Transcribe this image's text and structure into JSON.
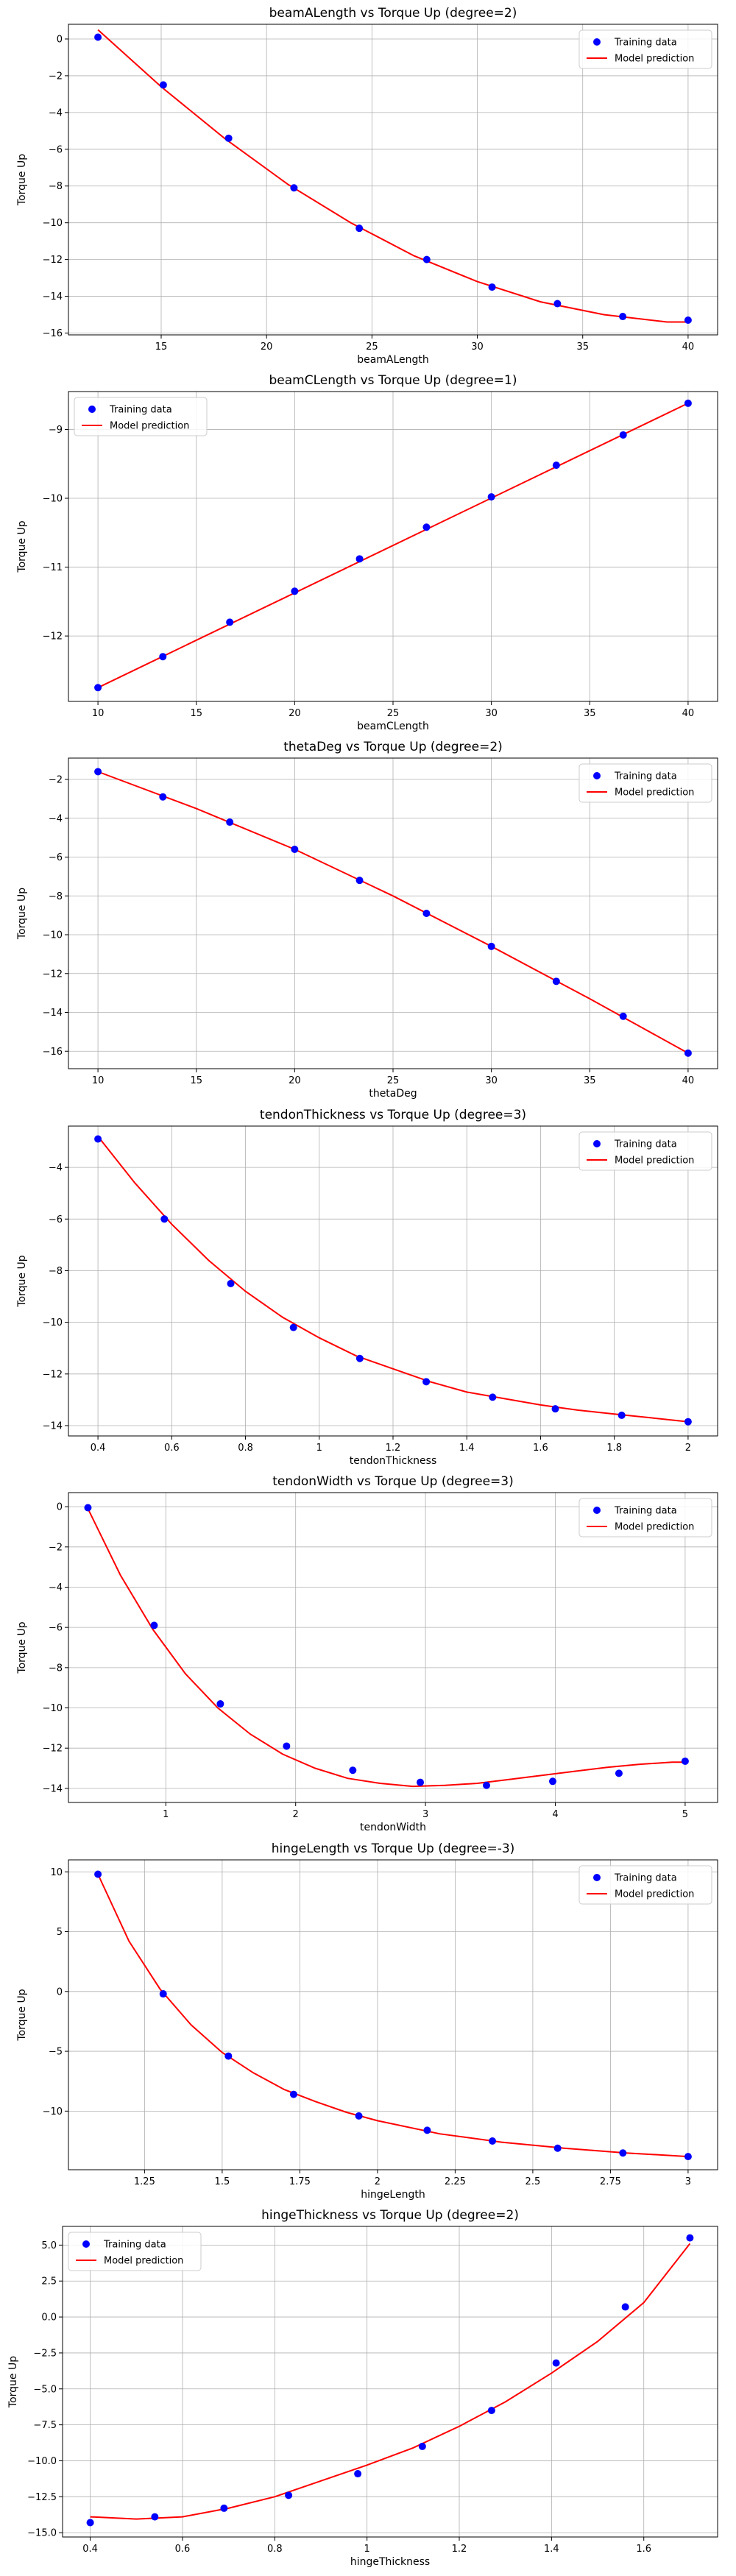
{
  "chart_data": [
    {
      "type": "scatter",
      "title": "beamALength vs Torque Up (degree=2)",
      "xlabel": "beamALength",
      "ylabel": "Torque Up",
      "xlim": [
        10.6,
        41.4
      ],
      "ylim": [
        -16.1,
        0.8
      ],
      "xticks": [
        15,
        20,
        25,
        30,
        35,
        40
      ],
      "yticks": [
        0,
        -2,
        -4,
        -6,
        -8,
        -10,
        -12,
        -14,
        -16
      ],
      "grid": true,
      "legend_position": "top-right",
      "series": [
        {
          "name": "Training data",
          "kind": "points",
          "x": [
            12.0,
            15.1,
            18.2,
            21.3,
            24.4,
            27.6,
            30.7,
            33.8,
            36.9,
            40.0
          ],
          "y": [
            0.1,
            -2.5,
            -5.4,
            -8.1,
            -10.3,
            -12.0,
            -13.5,
            -14.4,
            -15.1,
            -15.3
          ]
        },
        {
          "name": "Model prediction",
          "kind": "curve",
          "x": [
            12,
            15,
            18,
            21,
            24,
            27,
            30,
            33,
            36,
            39,
            40
          ],
          "y": [
            0.5,
            -2.6,
            -5.4,
            -7.9,
            -10.0,
            -11.8,
            -13.2,
            -14.3,
            -15.0,
            -15.4,
            -15.4
          ]
        }
      ]
    },
    {
      "type": "scatter",
      "title": "beamCLength vs Torque Up (degree=1)",
      "xlabel": "beamCLength",
      "ylabel": "Torque Up",
      "xlim": [
        8.5,
        41.5
      ],
      "ylim": [
        -12.95,
        -8.45
      ],
      "xticks": [
        10,
        15,
        20,
        25,
        30,
        35,
        40
      ],
      "yticks": [
        -9,
        -10,
        -11,
        -12
      ],
      "grid": true,
      "legend_position": "top-left",
      "series": [
        {
          "name": "Training data",
          "kind": "points",
          "x": [
            10.0,
            13.3,
            16.7,
            20.0,
            23.3,
            26.7,
            30.0,
            33.3,
            36.7,
            40.0
          ],
          "y": [
            -12.75,
            -12.3,
            -11.8,
            -11.35,
            -10.88,
            -10.42,
            -9.98,
            -9.52,
            -9.08,
            -8.62
          ]
        },
        {
          "name": "Model prediction",
          "kind": "curve",
          "x": [
            10,
            40
          ],
          "y": [
            -12.75,
            -8.62
          ]
        }
      ]
    },
    {
      "type": "scatter",
      "title": "thetaDeg vs Torque Up (degree=2)",
      "xlabel": "thetaDeg",
      "ylabel": "Torque Up",
      "xlim": [
        8.5,
        41.5
      ],
      "ylim": [
        -16.9,
        -0.9
      ],
      "xticks": [
        10,
        15,
        20,
        25,
        30,
        35,
        40
      ],
      "yticks": [
        -2,
        -4,
        -6,
        -8,
        -10,
        -12,
        -14,
        -16
      ],
      "grid": true,
      "legend_position": "top-right",
      "series": [
        {
          "name": "Training data",
          "kind": "points",
          "x": [
            10.0,
            13.3,
            16.7,
            20.0,
            23.3,
            26.7,
            30.0,
            33.3,
            36.7,
            40.0
          ],
          "y": [
            -1.6,
            -2.9,
            -4.2,
            -5.6,
            -7.2,
            -8.9,
            -10.6,
            -12.4,
            -14.2,
            -16.1
          ]
        },
        {
          "name": "Model prediction",
          "kind": "curve",
          "x": [
            10,
            15,
            20,
            25,
            30,
            35,
            40
          ],
          "y": [
            -1.6,
            -3.5,
            -5.6,
            -8.0,
            -10.6,
            -13.3,
            -16.1
          ]
        }
      ]
    },
    {
      "type": "scatter",
      "title": "tendonThickness vs Torque Up (degree=3)",
      "xlabel": "tendonThickness",
      "ylabel": "Torque Up",
      "xlim": [
        0.32,
        2.08
      ],
      "ylim": [
        -14.4,
        -2.4
      ],
      "xticks": [
        0.4,
        0.6,
        0.8,
        1.0,
        1.2,
        1.4,
        1.6,
        1.8,
        2.0
      ],
      "yticks": [
        -4,
        -6,
        -8,
        -10,
        -12,
        -14
      ],
      "grid": true,
      "legend_position": "top-right",
      "series": [
        {
          "name": "Training data",
          "kind": "points",
          "x": [
            0.4,
            0.58,
            0.76,
            0.93,
            1.11,
            1.29,
            1.47,
            1.64,
            1.82,
            2.0
          ],
          "y": [
            -2.9,
            -6.0,
            -8.5,
            -10.2,
            -11.4,
            -12.3,
            -12.9,
            -13.35,
            -13.6,
            -13.85
          ]
        },
        {
          "name": "Model prediction",
          "kind": "curve",
          "x": [
            0.4,
            0.5,
            0.6,
            0.7,
            0.8,
            0.9,
            1.0,
            1.1,
            1.2,
            1.3,
            1.4,
            1.5,
            1.6,
            1.7,
            1.8,
            1.9,
            2.0
          ],
          "y": [
            -2.8,
            -4.6,
            -6.2,
            -7.6,
            -8.8,
            -9.8,
            -10.6,
            -11.3,
            -11.8,
            -12.3,
            -12.7,
            -12.95,
            -13.2,
            -13.4,
            -13.55,
            -13.7,
            -13.85
          ]
        }
      ]
    },
    {
      "type": "scatter",
      "title": "tendonWidth vs Torque Up (degree=3)",
      "xlabel": "tendonWidth",
      "ylabel": "Torque Up",
      "xlim": [
        0.25,
        5.25
      ],
      "ylim": [
        -14.7,
        0.7
      ],
      "xticks": [
        1,
        2,
        3,
        4,
        5
      ],
      "yticks": [
        0,
        -2,
        -4,
        -6,
        -8,
        -10,
        -12,
        -14
      ],
      "grid": true,
      "legend_position": "top-right",
      "series": [
        {
          "name": "Training data",
          "kind": "points",
          "x": [
            0.4,
            0.91,
            1.42,
            1.93,
            2.44,
            2.96,
            3.47,
            3.98,
            4.49,
            5.0
          ],
          "y": [
            -0.05,
            -5.9,
            -9.8,
            -11.9,
            -13.1,
            -13.7,
            -13.85,
            -13.65,
            -13.25,
            -12.65
          ]
        },
        {
          "name": "Model prediction",
          "kind": "curve",
          "x": [
            0.4,
            0.65,
            0.9,
            1.15,
            1.4,
            1.65,
            1.9,
            2.15,
            2.4,
            2.65,
            2.9,
            3.15,
            3.4,
            3.65,
            3.9,
            4.15,
            4.4,
            4.65,
            4.9,
            5.0
          ],
          "y": [
            -0.1,
            -3.4,
            -6.1,
            -8.3,
            -10.0,
            -11.3,
            -12.3,
            -13.0,
            -13.5,
            -13.75,
            -13.9,
            -13.85,
            -13.75,
            -13.55,
            -13.35,
            -13.15,
            -12.95,
            -12.8,
            -12.7,
            -12.7
          ]
        }
      ]
    },
    {
      "type": "scatter",
      "title": "hingeLength vs Torque Up (degree=-3)",
      "xlabel": "hingeLength",
      "ylabel": "Torque Up",
      "xlim": [
        1.005,
        3.095
      ],
      "ylim": [
        -14.9,
        11.0
      ],
      "xticks": [
        1.25,
        1.5,
        1.75,
        2.0,
        2.25,
        2.5,
        2.75,
        3.0
      ],
      "yticks": [
        10,
        5,
        0,
        -5,
        -10
      ],
      "grid": true,
      "legend_position": "top-right",
      "series": [
        {
          "name": "Training data",
          "kind": "points",
          "x": [
            1.1,
            1.31,
            1.52,
            1.73,
            1.94,
            2.16,
            2.37,
            2.58,
            2.79,
            3.0
          ],
          "y": [
            9.8,
            -0.2,
            -5.4,
            -8.6,
            -10.4,
            -11.6,
            -12.5,
            -13.1,
            -13.5,
            -13.8
          ]
        },
        {
          "name": "Model prediction",
          "kind": "curve",
          "x": [
            1.1,
            1.2,
            1.3,
            1.4,
            1.5,
            1.6,
            1.7,
            1.8,
            1.9,
            2.0,
            2.2,
            2.4,
            2.6,
            2.8,
            3.0
          ],
          "y": [
            9.8,
            4.2,
            0.2,
            -2.8,
            -5.1,
            -6.8,
            -8.2,
            -9.2,
            -10.1,
            -10.8,
            -11.9,
            -12.6,
            -13.1,
            -13.5,
            -13.8
          ]
        }
      ]
    },
    {
      "type": "scatter",
      "title": "hingeThickness vs Torque Up (degree=2)",
      "xlabel": "hingeThickness",
      "ylabel": "Torque Up",
      "xlim": [
        0.34,
        1.76
      ],
      "ylim": [
        -15.3,
        6.3
      ],
      "xticks": [
        0.4,
        0.6,
        0.8,
        1.0,
        1.2,
        1.4,
        1.6
      ],
      "yticks": [
        5.0,
        2.5,
        0.0,
        -2.5,
        -5.0,
        -7.5,
        -10.0,
        -12.5,
        -15.0
      ],
      "ytick_labels": [
        "5.0",
        "2.5",
        "0.0",
        "−2.5",
        "−5.0",
        "−7.5",
        "−10.0",
        "−12.5",
        "−15.0"
      ],
      "grid": true,
      "legend_position": "top-left",
      "series": [
        {
          "name": "Training data",
          "kind": "points",
          "x": [
            0.4,
            0.54,
            0.69,
            0.83,
            0.98,
            1.12,
            1.27,
            1.41,
            1.56,
            1.7
          ],
          "y": [
            -14.3,
            -13.9,
            -13.3,
            -12.4,
            -10.9,
            -9.0,
            -6.5,
            -3.2,
            0.7,
            5.5
          ]
        },
        {
          "name": "Model prediction",
          "kind": "curve",
          "x": [
            0.4,
            0.5,
            0.6,
            0.7,
            0.8,
            0.9,
            1.0,
            1.1,
            1.2,
            1.3,
            1.4,
            1.5,
            1.6,
            1.7
          ],
          "y": [
            -13.9,
            -14.05,
            -13.9,
            -13.3,
            -12.5,
            -11.4,
            -10.3,
            -9.1,
            -7.6,
            -5.9,
            -3.9,
            -1.7,
            1.0,
            5.1
          ]
        }
      ]
    }
  ]
}
